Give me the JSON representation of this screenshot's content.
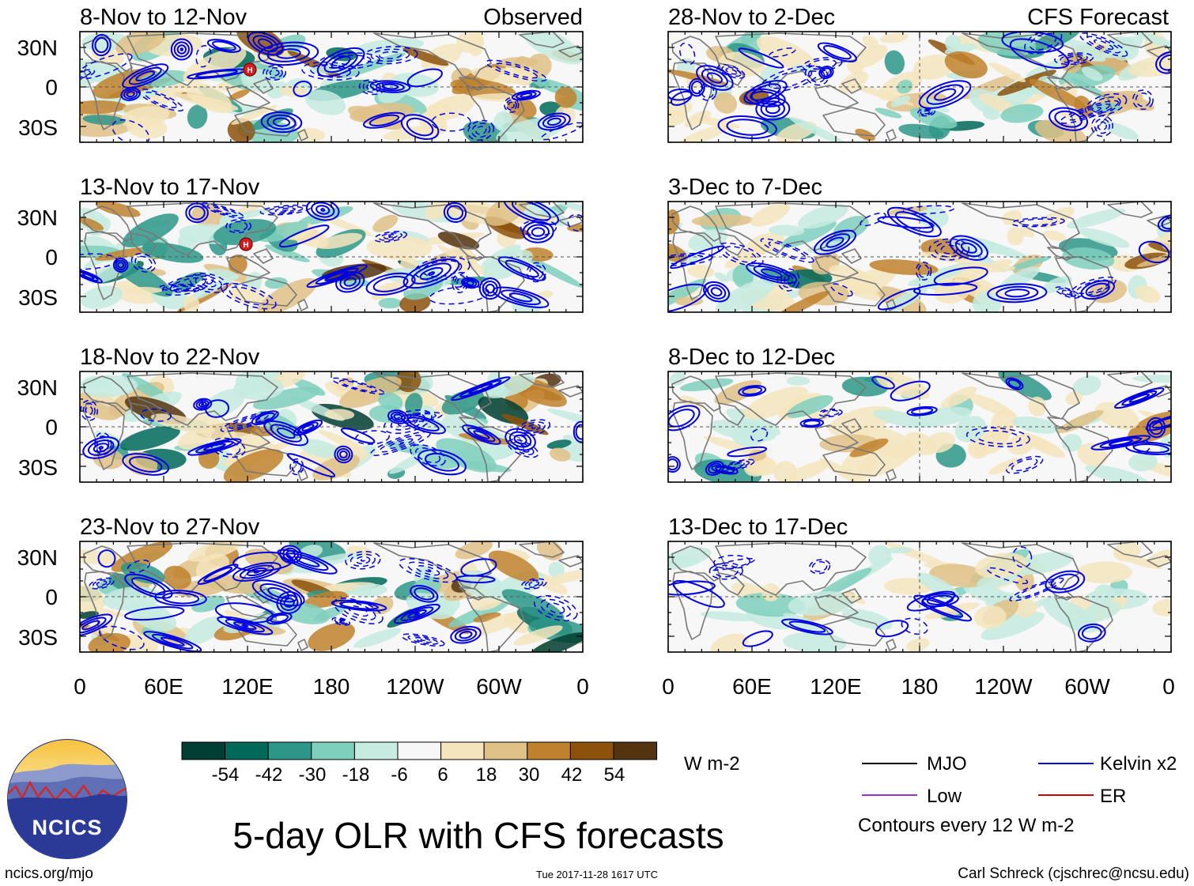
{
  "left_column_label": "Observed",
  "right_column_label": "CFS Forecast",
  "panels_left": [
    {
      "dates": "8-Nov to 12-Nov",
      "markers": [
        "H"
      ]
    },
    {
      "dates": "13-Nov to 17-Nov",
      "markers": [
        "H"
      ]
    },
    {
      "dates": "18-Nov to 22-Nov",
      "markers": []
    },
    {
      "dates": "23-Nov to 27-Nov",
      "markers": []
    }
  ],
  "panels_right": [
    {
      "dates": "28-Nov to 2-Dec"
    },
    {
      "dates": "3-Dec to 7-Dec"
    },
    {
      "dates": "8-Dec to 12-Dec"
    },
    {
      "dates": "13-Dec to 17-Dec"
    }
  ],
  "lat_labels": [
    "30N",
    "0",
    "30S"
  ],
  "lon_labels": [
    "0",
    "60E",
    "120E",
    "180",
    "120W",
    "60W",
    "0"
  ],
  "colorbar": {
    "unit": "W m-2",
    "ticks": [
      "-54",
      "-42",
      "-30",
      "-18",
      "-6",
      "6",
      "18",
      "30",
      "42",
      "54"
    ],
    "colors": [
      "#003d33",
      "#00695a",
      "#2e9688",
      "#7fcfbd",
      "#c6ebe0",
      "#f7f7f7",
      "#f5e5bd",
      "#dfc187",
      "#bf812d",
      "#8c510a",
      "#54330f"
    ]
  },
  "legend": {
    "items": [
      {
        "label": "MJO",
        "color": "#000000"
      },
      {
        "label": "Kelvin x2",
        "color": "#0000e0"
      },
      {
        "label": "Low",
        "color": "#9932cc"
      },
      {
        "label": "ER",
        "color": "#cc0000"
      }
    ],
    "note": "Contours every 12 W m-2"
  },
  "logo_text": "NCICS",
  "main_title": "5-day OLR with CFS forecasts",
  "footer": {
    "left": "ncics.org/mjo",
    "center": "Tue 2017-11-28 1617 UTC",
    "right": "Carl Schreck (cjschrec@ncsu.edu)"
  },
  "colors": {
    "land_outline": "#777777",
    "contour": "#0000e0",
    "equator": "#555555"
  }
}
